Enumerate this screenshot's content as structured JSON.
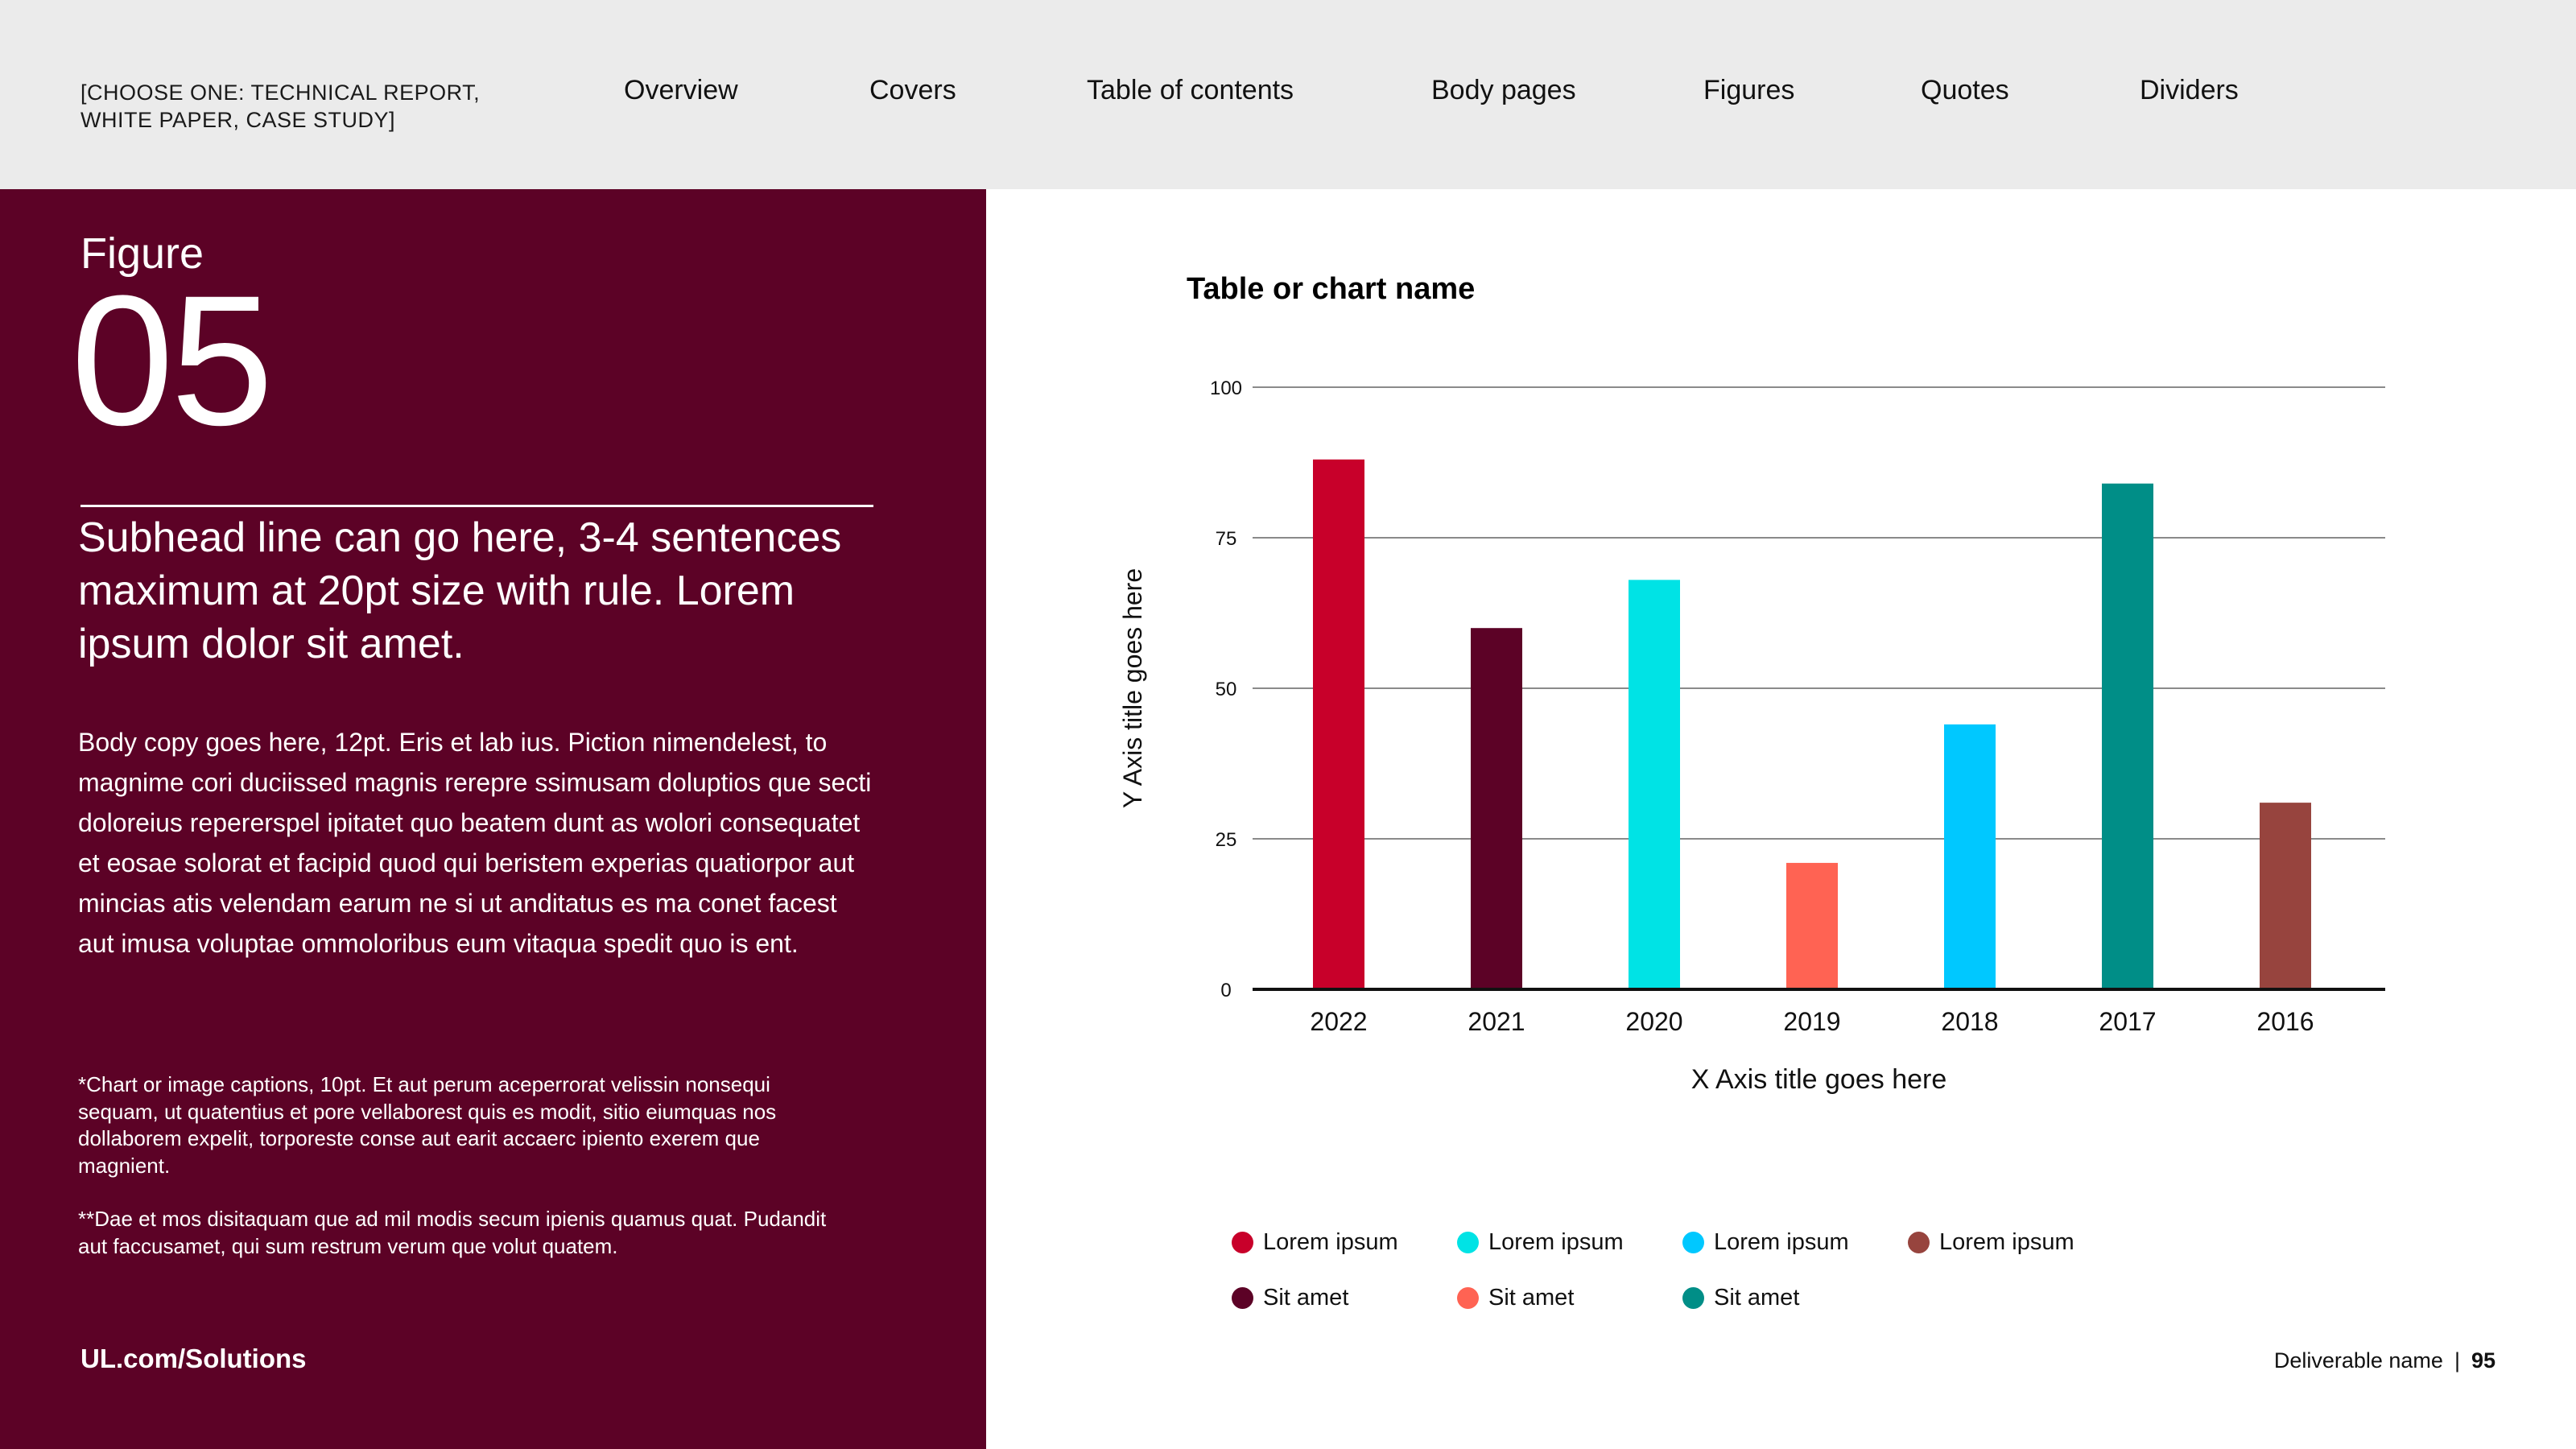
{
  "header": {
    "doc_type": "[CHOOSE ONE: TECHNICAL REPORT, WHITE PAPER, CASE STUDY]",
    "nav": [
      "Overview",
      "Covers",
      "Table of contents",
      "Body pages",
      "Figures",
      "Quotes",
      "Dividers"
    ]
  },
  "left": {
    "figure_label": "Figure",
    "figure_number": "05",
    "subhead": "Subhead line can go here, 3-4 sentences maximum at 20pt size with rule. Lorem ipsum dolor sit amet.",
    "body": "Body copy goes here, 12pt. Eris et lab ius. Piction nimendelest, to magnime cori duciissed magnis rerepre ssimusam doluptios que secti doloreius repererspel ipitatet quo beatem dunt as wolori consequatet et eosae solorat et facipid quod qui beristem experias quatiorpor aut mincias atis velendam earum ne si ut anditatus es ma conet facest aut imusa voluptae ommoloribus eum vitaqua spedit quo is ent.",
    "caption1": "*Chart or image captions, 10pt. Et aut perum aceperrorat velissin nonsequi sequam, ut quatentius et pore vellaborest quis es modit, sitio eiumquas nos dollaborem expelit, torporeste conse aut earit accaerc ipiento exerem que magnient.",
    "caption2": "**Dae et mos disitaquam que ad mil modis secum ipienis quamus quat. Pudandit aut faccusamet, qui sum restrum verum que volut quatem.",
    "link": "UL.com/Solutions"
  },
  "chart_data": {
    "type": "bar",
    "title": "Table or chart name",
    "xlabel": "X Axis title goes here",
    "ylabel": "Y Axis title goes here",
    "categories": [
      "2022",
      "2021",
      "2020",
      "2019",
      "2018",
      "2017",
      "2016"
    ],
    "values": [
      88,
      60,
      68,
      21,
      44,
      84,
      31
    ],
    "colors": [
      "#c8002a",
      "#5c0226",
      "#00e3e5",
      "#ff6353",
      "#00c8ff",
      "#008e87",
      "#97443e"
    ],
    "ylim": [
      0,
      100
    ],
    "yticks": [
      "0",
      "25",
      "50",
      "75",
      "100"
    ],
    "grid": true,
    "legend": [
      {
        "label": "Lorem ipsum",
        "color": "#c8002a"
      },
      {
        "label": "Lorem ipsum",
        "color": "#00e3e5"
      },
      {
        "label": "Lorem ipsum",
        "color": "#00c8ff"
      },
      {
        "label": "Lorem ipsum",
        "color": "#97443e"
      },
      {
        "label": "Sit amet",
        "color": "#5c0226"
      },
      {
        "label": "Sit amet",
        "color": "#ff6353"
      },
      {
        "label": "Sit amet",
        "color": "#008e87"
      }
    ],
    "legend_placement": "bottom"
  },
  "footer": {
    "deliverable": "Deliverable name",
    "separator": "|",
    "page": "95"
  }
}
